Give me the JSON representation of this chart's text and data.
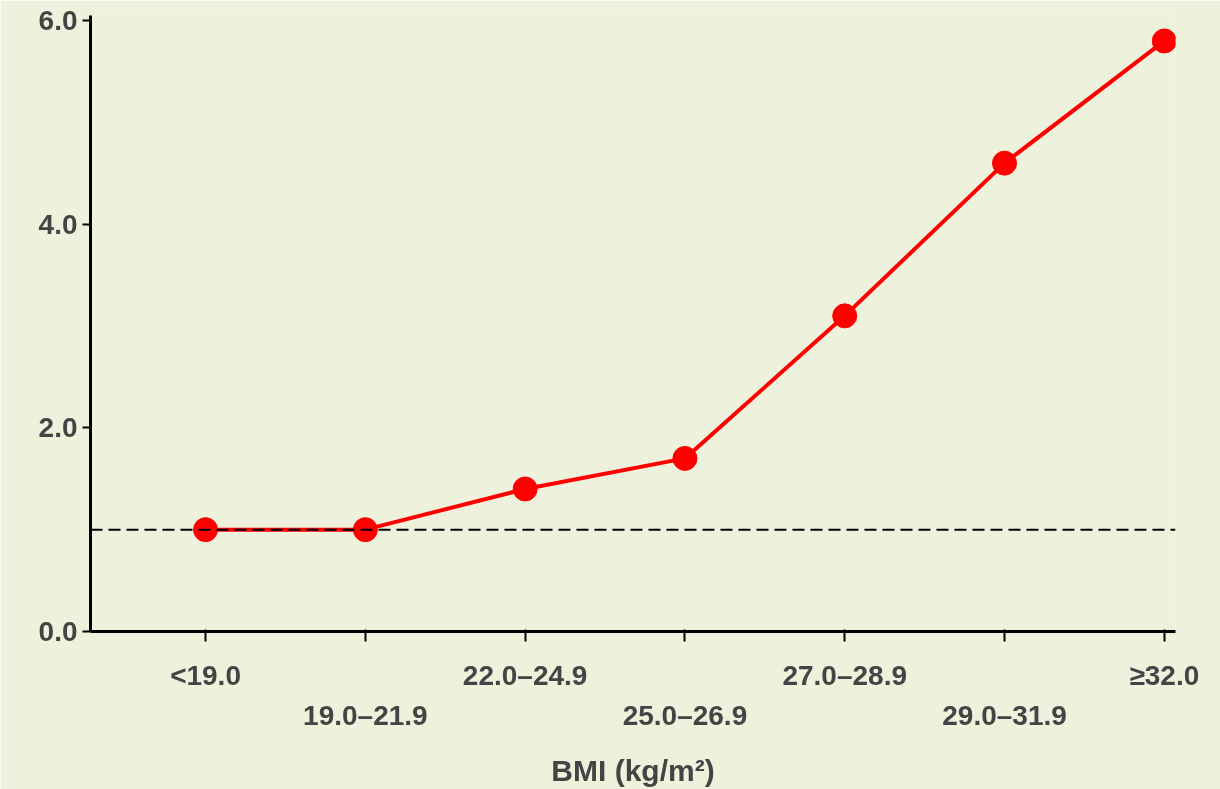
{
  "chart_data": {
    "type": "line",
    "xlabel": "BMI (kg/m²)",
    "categories": [
      "<19.0",
      "19.0–21.9",
      "22.0–24.9",
      "25.0–26.9",
      "27.0–28.9",
      "29.0–31.9",
      "≥32.0"
    ],
    "values": [
      1.0,
      1.0,
      1.4,
      1.7,
      3.1,
      4.6,
      5.8
    ],
    "color": "#ff0000",
    "marker": "circle",
    "line_style": "solid",
    "grid": false,
    "ylim": [
      0,
      6.05
    ],
    "yticks": [
      {
        "value": 0,
        "label": "0.0"
      },
      {
        "value": 2,
        "label": "2.0"
      },
      {
        "value": 4,
        "label": "4.0"
      },
      {
        "value": 6,
        "label": "6.0"
      }
    ],
    "ref_lines": [
      {
        "axis": "y",
        "value": 1.0,
        "label": null,
        "color": "#000000",
        "line_style": "dashed"
      }
    ]
  }
}
